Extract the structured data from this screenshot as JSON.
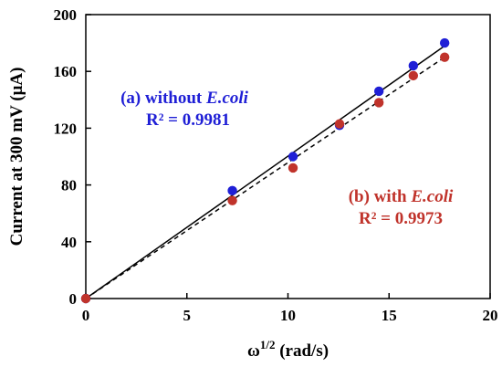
{
  "chart_data": {
    "type": "scatter",
    "xlabel_base": "ω",
    "xlabel_sup": "1/2",
    "xlabel_rest": " (rad/s)",
    "ylabel": "Current at 300 mV (μA)",
    "xlim": [
      0,
      20
    ],
    "ylim": [
      0,
      200
    ],
    "x_ticks": [
      0,
      5,
      10,
      15,
      20
    ],
    "y_ticks": [
      0,
      40,
      80,
      120,
      160,
      200
    ],
    "grid": false,
    "series": [
      {
        "color": "#1f1fd6",
        "line_style": "solid",
        "x": [
          0,
          7.25,
          10.25,
          12.55,
          14.5,
          16.2,
          17.75
        ],
        "y": [
          0,
          76,
          100,
          122,
          146,
          164,
          180
        ],
        "fit_end": [
          17.75,
          178
        ]
      },
      {
        "color": "#c0332b",
        "line_style": "dashed",
        "x": [
          0,
          7.25,
          10.25,
          12.55,
          14.5,
          16.2,
          17.75
        ],
        "y": [
          0,
          69,
          92,
          123,
          138,
          157,
          170
        ],
        "fit_end": [
          17.75,
          170
        ]
      }
    ],
    "annotations": [
      {
        "prefix": "(a) without ",
        "italic": "E.coli",
        "stat": "R² = 0.9981",
        "color": "#1f1fd6"
      },
      {
        "prefix": "(b) with ",
        "italic": "E.coli",
        "stat": "R² = 0.9973",
        "color": "#c0332b"
      }
    ]
  }
}
